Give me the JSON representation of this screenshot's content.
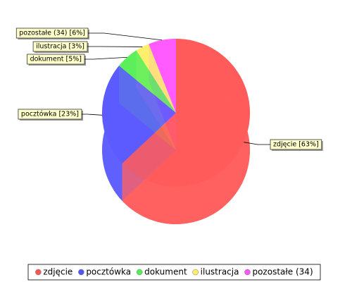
{
  "chart_data": {
    "type": "pie3d",
    "categories": [
      "zdjęcie",
      "pocztówka",
      "dokument",
      "ilustracja",
      "pozostałe (34)"
    ],
    "values": [
      63,
      23,
      5,
      3,
      6
    ],
    "value_labels": [
      "zdjęcie [63%]",
      "pocztówka [23%]",
      "dokument [5%]",
      "ilustracja [3%]",
      "pozostałe (34) [6%]"
    ],
    "colors": [
      "#ff5555",
      "#5555ff",
      "#55ee55",
      "#ffee66",
      "#ff55ff"
    ],
    "legend": "bottom"
  }
}
